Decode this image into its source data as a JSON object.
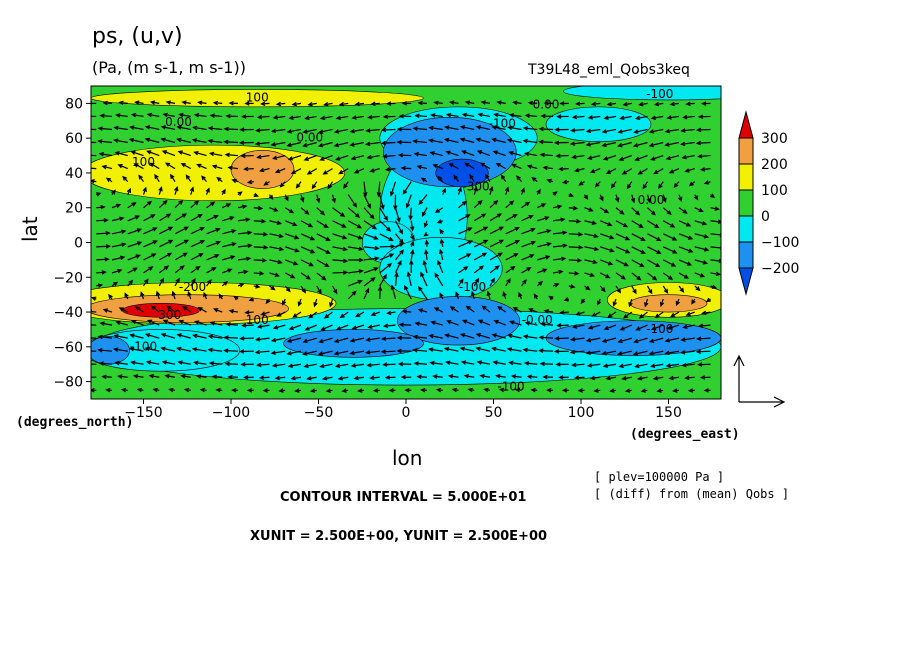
{
  "chart_data": {
    "type": "heatmap",
    "title": "ps, (u,v)",
    "units_line": "(Pa, (m s-1, m s-1))",
    "run_label": "T39L48_eml_Qobs3keq",
    "xlabel": "lon",
    "ylabel": "lat",
    "x_unit_note": "(degrees_east)",
    "y_unit_note": "(degrees_north)",
    "xlim": [
      -180,
      180
    ],
    "ylim": [
      -90,
      90
    ],
    "x_ticks": [
      -150,
      -100,
      -50,
      0,
      50,
      100,
      150
    ],
    "y_ticks": [
      -80,
      -60,
      -40,
      -20,
      0,
      20,
      40,
      60,
      80
    ],
    "colorbar": {
      "labels": [
        "300",
        "200",
        "100",
        "0",
        "−100",
        "−200"
      ],
      "colors": [
        "#e00000",
        "#f0a040",
        "#f0f000",
        "#30d030",
        "#00e8f0",
        "#1e90f0",
        "#0050e8"
      ]
    },
    "contour_labels": [
      {
        "text": "100",
        "lon": -85,
        "lat": 81
      },
      {
        "text": "-100",
        "lon": 145,
        "lat": 83
      },
      {
        "text": "0.00",
        "lon": 80,
        "lat": 77
      },
      {
        "text": "-100",
        "lon": 55,
        "lat": 66
      },
      {
        "text": "0.00",
        "lon": -130,
        "lat": 67
      },
      {
        "text": "0.00",
        "lon": -55,
        "lat": 58
      },
      {
        "text": "100",
        "lon": -150,
        "lat": 44
      },
      {
        "text": "-300",
        "lon": 40,
        "lat": 30
      },
      {
        "text": "0.00",
        "lon": 140,
        "lat": 22
      },
      {
        "text": "-200",
        "lon": -122,
        "lat": -28
      },
      {
        "text": "300",
        "lon": -135,
        "lat": -44
      },
      {
        "text": "-100",
        "lon": 38,
        "lat": -28
      },
      {
        "text": "100",
        "lon": -85,
        "lat": -47
      },
      {
        "text": "-0.00",
        "lon": 75,
        "lat": -47
      },
      {
        "text": "-100",
        "lon": 145,
        "lat": -52
      },
      {
        "text": "-100",
        "lon": -150,
        "lat": -62
      },
      {
        "text": "-100",
        "lon": 60,
        "lat": -85
      }
    ],
    "fields": [
      {
        "level": "-100",
        "lon": 150,
        "lat": 87,
        "rx": 60,
        "ry": 5
      },
      {
        "level": "-100",
        "lon": 30,
        "lat": 60,
        "rx": 45,
        "ry": 18
      },
      {
        "level": "-100",
        "lon": 110,
        "lat": 68,
        "rx": 30,
        "ry": 10
      },
      {
        "level": "-100",
        "lon": 10,
        "lat": 15,
        "rx": 25,
        "ry": 40
      },
      {
        "level": "-100",
        "lon": -10,
        "lat": 0,
        "rx": 15,
        "ry": 12
      },
      {
        "level": "-100",
        "lon": 20,
        "lat": -15,
        "rx": 35,
        "ry": 18
      },
      {
        "level": "-100",
        "lon": 0,
        "lat": -60,
        "rx": 180,
        "ry": 22
      },
      {
        "level": "-100",
        "lon": -140,
        "lat": -62,
        "rx": 45,
        "ry": 12
      },
      {
        "level": "-200",
        "lon": 25,
        "lat": 52,
        "rx": 38,
        "ry": 20
      },
      {
        "level": "-200",
        "lon": 30,
        "lat": -45,
        "rx": 35,
        "ry": 14
      },
      {
        "level": "-200",
        "lon": 130,
        "lat": -55,
        "rx": 50,
        "ry": 10
      },
      {
        "level": "-200",
        "lon": -170,
        "lat": -62,
        "rx": 12,
        "ry": 8
      },
      {
        "level": "-200",
        "lon": -30,
        "lat": -58,
        "rx": 40,
        "ry": 8
      },
      {
        "level": "-300",
        "lon": 32,
        "lat": 40,
        "rx": 15,
        "ry": 8
      },
      {
        "level": "100",
        "lon": -110,
        "lat": 40,
        "rx": 75,
        "ry": 16
      },
      {
        "level": "100",
        "lon": -85,
        "lat": 83,
        "rx": 95,
        "ry": 5
      },
      {
        "level": "100",
        "lon": -120,
        "lat": -35,
        "rx": 80,
        "ry": 12
      },
      {
        "level": "100",
        "lon": 150,
        "lat": -33,
        "rx": 35,
        "ry": 10
      },
      {
        "level": "200",
        "lon": -82,
        "lat": 42,
        "rx": 18,
        "ry": 11
      },
      {
        "level": "200",
        "lon": -125,
        "lat": -38,
        "rx": 58,
        "ry": 8
      },
      {
        "level": "200",
        "lon": 150,
        "lat": -35,
        "rx": 22,
        "ry": 5
      },
      {
        "level": "300",
        "lon": -140,
        "lat": -39,
        "rx": 22,
        "ry": 4
      }
    ],
    "wind_note": "vector field (u,v) drawn on a regular lon/lat grid with convergent flow near lon -10, lat 0"
  },
  "labels": {
    "title": "ps, (u,v)",
    "units": "(Pa, (m s-1, m s-1))",
    "run": "T39L48_eml_Qobs3keq",
    "xlabel": "lon",
    "ylabel": "lat",
    "xnote": "(degrees_east)",
    "ynote": "(degrees_north)",
    "plev": "[ plev=100000 Pa ]",
    "diff": "[ (diff) from (mean) Qobs ]",
    "contour_interval": "CONTOUR INTERVAL = 5.000E+01",
    "vector_units": "XUNIT = 2.500E+00, YUNIT = 2.500E+00"
  }
}
